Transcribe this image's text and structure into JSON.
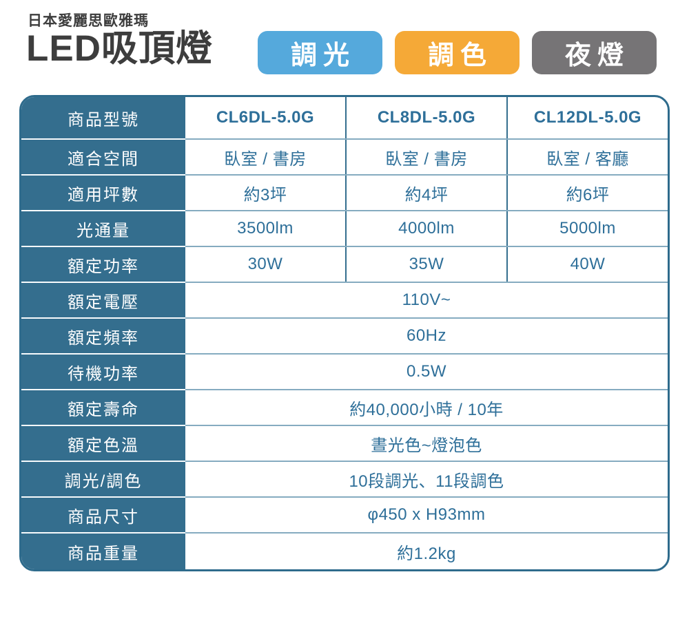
{
  "header": {
    "brand": "日本愛麗思歐雅瑪",
    "title": "LED吸頂燈",
    "badges": [
      {
        "label": "調光",
        "color": "#55a9dc"
      },
      {
        "label": "調色",
        "color": "#f5a937"
      },
      {
        "label": "夜燈",
        "color": "#767476"
      }
    ]
  },
  "table": {
    "accent_color": "#346e8e",
    "value_text_color": "#2e6f99",
    "rows": [
      {
        "label": "商品型號",
        "values": [
          "CL6DL-5.0G",
          "CL8DL-5.0G",
          "CL12DL-5.0G"
        ],
        "bold": true
      },
      {
        "label": "適合空間",
        "values": [
          "臥室 / 書房",
          "臥室 / 書房",
          "臥室 / 客廳"
        ]
      },
      {
        "label": "適用坪數",
        "values": [
          "約3坪",
          "約4坪",
          "約6坪"
        ]
      },
      {
        "label": "光通量",
        "values": [
          "3500lm",
          "4000lm",
          "5000lm"
        ]
      },
      {
        "label": "額定功率",
        "values": [
          "30W",
          "35W",
          "40W"
        ]
      },
      {
        "label": "額定電壓",
        "span": "110V~"
      },
      {
        "label": "額定頻率",
        "span": "60Hz"
      },
      {
        "label": "待機功率",
        "span": "0.5W"
      },
      {
        "label": "額定壽命",
        "span": "約40,000小時 / 10年"
      },
      {
        "label": "額定色溫",
        "span": "晝光色~燈泡色"
      },
      {
        "label": "調光/調色",
        "span": "10段調光、11段調色"
      },
      {
        "label": "商品尺寸",
        "span": "φ450 x H93mm"
      },
      {
        "label": "商品重量",
        "span": "約1.2kg"
      }
    ]
  }
}
